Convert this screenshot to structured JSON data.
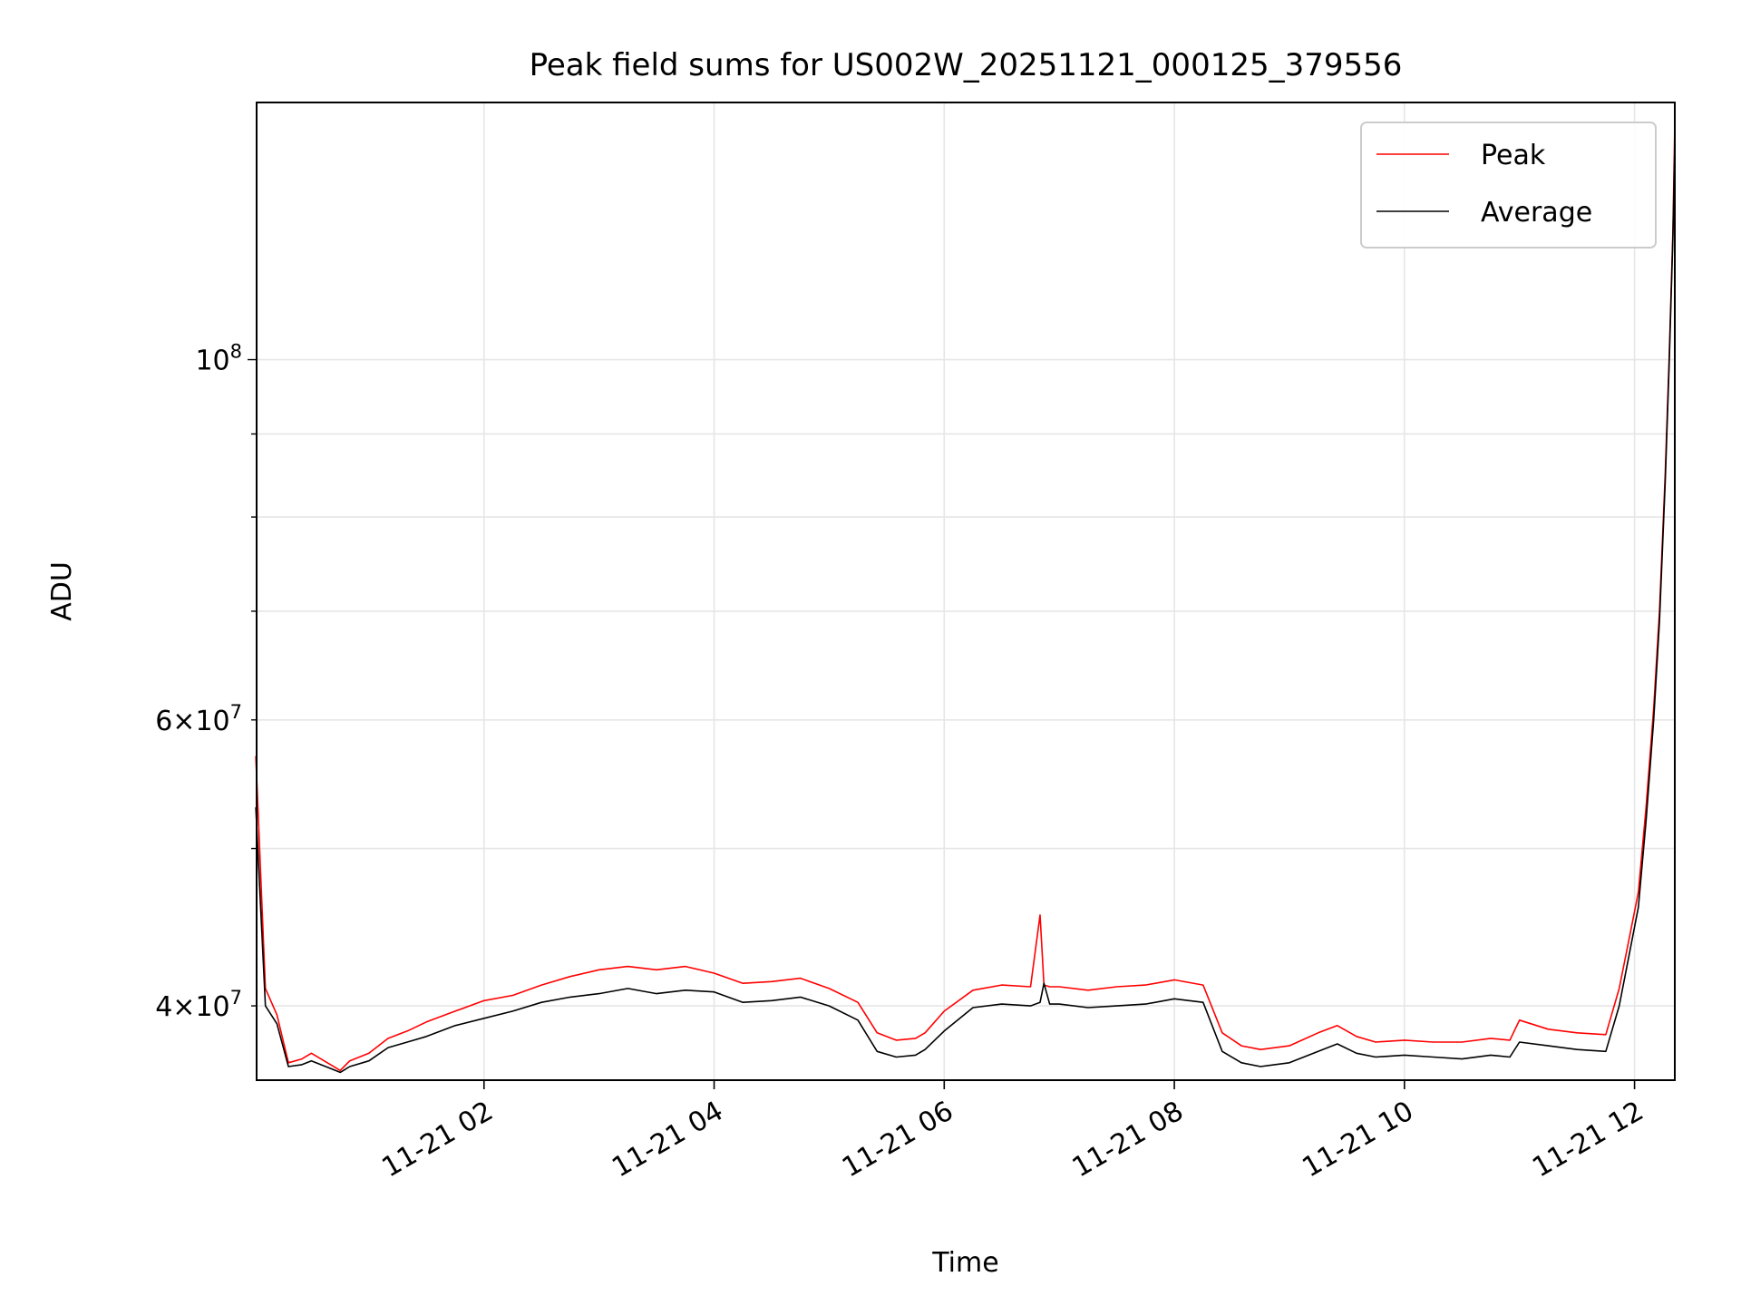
{
  "chart_data": {
    "type": "line",
    "title": "Peak field sums for US002W_20251121_000125_379556",
    "xlabel": "Time",
    "ylabel": "ADU",
    "y_scale": "log",
    "x_range": [
      "2025-11-21T00:01:25",
      "2025-11-21T12:21:00"
    ],
    "ylim": [
      36000000,
      144000000
    ],
    "grid": true,
    "legend_position": "top-right",
    "x_ticks": [
      {
        "value": "2025-11-21T02:00",
        "label": "11-21 02"
      },
      {
        "value": "2025-11-21T04:00",
        "label": "11-21 04"
      },
      {
        "value": "2025-11-21T06:00",
        "label": "11-21 06"
      },
      {
        "value": "2025-11-21T08:00",
        "label": "11-21 08"
      },
      {
        "value": "2025-11-21T10:00",
        "label": "11-21 10"
      },
      {
        "value": "2025-11-21T12:00",
        "label": "11-21 12"
      }
    ],
    "y_major_ticks": [
      {
        "value": 100000000,
        "mantissa": "",
        "exp": "8"
      }
    ],
    "y_minor_ticks": [
      {
        "value": 40000000,
        "mantissa": "4",
        "exp": "7",
        "label": true
      },
      {
        "value": 50000000,
        "label": false
      },
      {
        "value": 60000000,
        "mantissa": "6",
        "exp": "7",
        "label": true
      },
      {
        "value": 70000000,
        "label": false
      },
      {
        "value": 80000000,
        "label": false
      },
      {
        "value": 90000000,
        "label": false
      }
    ],
    "series": [
      {
        "name": "Peak",
        "color": "#ff0000",
        "x": [
          "2025-11-21T00:01",
          "2025-11-21T00:06",
          "2025-11-21T00:12",
          "2025-11-21T00:18",
          "2025-11-21T00:25",
          "2025-11-21T00:30",
          "2025-11-21T00:40",
          "2025-11-21T00:45",
          "2025-11-21T00:50",
          "2025-11-21T01:00",
          "2025-11-21T01:10",
          "2025-11-21T01:20",
          "2025-11-21T01:30",
          "2025-11-21T01:45",
          "2025-11-21T02:00",
          "2025-11-21T02:15",
          "2025-11-21T02:30",
          "2025-11-21T02:45",
          "2025-11-21T03:00",
          "2025-11-21T03:15",
          "2025-11-21T03:30",
          "2025-11-21T03:45",
          "2025-11-21T04:00",
          "2025-11-21T04:15",
          "2025-11-21T04:30",
          "2025-11-21T04:45",
          "2025-11-21T05:00",
          "2025-11-21T05:15",
          "2025-11-21T05:25",
          "2025-11-21T05:35",
          "2025-11-21T05:45",
          "2025-11-21T05:50",
          "2025-11-21T06:00",
          "2025-11-21T06:15",
          "2025-11-21T06:30",
          "2025-11-21T06:45",
          "2025-11-21T06:50",
          "2025-11-21T06:52",
          "2025-11-21T06:55",
          "2025-11-21T07:00",
          "2025-11-21T07:15",
          "2025-11-21T07:30",
          "2025-11-21T07:45",
          "2025-11-21T08:00",
          "2025-11-21T08:15",
          "2025-11-21T08:25",
          "2025-11-21T08:35",
          "2025-11-21T08:45",
          "2025-11-21T09:00",
          "2025-11-21T09:15",
          "2025-11-21T09:25",
          "2025-11-21T09:35",
          "2025-11-21T09:45",
          "2025-11-21T10:00",
          "2025-11-21T10:15",
          "2025-11-21T10:30",
          "2025-11-21T10:45",
          "2025-11-21T10:55",
          "2025-11-21T11:00",
          "2025-11-21T11:15",
          "2025-11-21T11:30",
          "2025-11-21T11:45",
          "2025-11-21T11:52",
          "2025-11-21T11:58",
          "2025-11-21T12:02",
          "2025-11-21T12:06",
          "2025-11-21T12:10",
          "2025-11-21T12:13",
          "2025-11-21T12:16",
          "2025-11-21T12:18",
          "2025-11-21T12:20",
          "2025-11-21T12:21"
        ],
        "y": [
          57000000,
          41000000,
          39500000,
          36900000,
          37100000,
          37400000,
          36800000,
          36500000,
          37000000,
          37400000,
          38200000,
          38600000,
          39100000,
          39700000,
          40300000,
          40600000,
          41200000,
          41700000,
          42100000,
          42300000,
          42100000,
          42300000,
          41900000,
          41300000,
          41400000,
          41600000,
          41000000,
          40200000,
          38500000,
          38100000,
          38200000,
          38500000,
          39700000,
          40900000,
          41200000,
          41100000,
          45500000,
          41200000,
          41100000,
          41100000,
          40900000,
          41100000,
          41200000,
          41500000,
          41200000,
          38500000,
          37800000,
          37600000,
          37800000,
          38500000,
          38900000,
          38300000,
          38000000,
          38100000,
          38000000,
          38000000,
          38200000,
          38100000,
          39200000,
          38700000,
          38500000,
          38400000,
          41000000,
          44500000,
          47000000,
          53000000,
          61000000,
          70000000,
          85000000,
          100000000,
          120000000,
          140000000
        ]
      },
      {
        "name": "Average",
        "color": "#000000",
        "x": [
          "2025-11-21T00:01",
          "2025-11-21T00:06",
          "2025-11-21T00:12",
          "2025-11-21T00:18",
          "2025-11-21T00:25",
          "2025-11-21T00:30",
          "2025-11-21T00:40",
          "2025-11-21T00:45",
          "2025-11-21T00:50",
          "2025-11-21T01:00",
          "2025-11-21T01:10",
          "2025-11-21T01:20",
          "2025-11-21T01:30",
          "2025-11-21T01:45",
          "2025-11-21T02:00",
          "2025-11-21T02:15",
          "2025-11-21T02:30",
          "2025-11-21T02:45",
          "2025-11-21T03:00",
          "2025-11-21T03:15",
          "2025-11-21T03:30",
          "2025-11-21T03:45",
          "2025-11-21T04:00",
          "2025-11-21T04:15",
          "2025-11-21T04:30",
          "2025-11-21T04:45",
          "2025-11-21T05:00",
          "2025-11-21T05:15",
          "2025-11-21T05:25",
          "2025-11-21T05:35",
          "2025-11-21T05:45",
          "2025-11-21T05:50",
          "2025-11-21T06:00",
          "2025-11-21T06:15",
          "2025-11-21T06:30",
          "2025-11-21T06:45",
          "2025-11-21T06:50",
          "2025-11-21T06:52",
          "2025-11-21T06:55",
          "2025-11-21T07:00",
          "2025-11-21T07:15",
          "2025-11-21T07:30",
          "2025-11-21T07:45",
          "2025-11-21T08:00",
          "2025-11-21T08:15",
          "2025-11-21T08:25",
          "2025-11-21T08:35",
          "2025-11-21T08:45",
          "2025-11-21T09:00",
          "2025-11-21T09:15",
          "2025-11-21T09:25",
          "2025-11-21T09:35",
          "2025-11-21T09:45",
          "2025-11-21T10:00",
          "2025-11-21T10:15",
          "2025-11-21T10:30",
          "2025-11-21T10:45",
          "2025-11-21T10:55",
          "2025-11-21T11:00",
          "2025-11-21T11:15",
          "2025-11-21T11:30",
          "2025-11-21T11:45",
          "2025-11-21T11:52",
          "2025-11-21T11:58",
          "2025-11-21T12:02",
          "2025-11-21T12:06",
          "2025-11-21T12:10",
          "2025-11-21T12:13",
          "2025-11-21T12:16",
          "2025-11-21T12:18",
          "2025-11-21T12:20",
          "2025-11-21T12:21"
        ],
        "y": [
          53000000,
          40000000,
          39000000,
          36700000,
          36800000,
          37000000,
          36600000,
          36400000,
          36700000,
          37000000,
          37700000,
          38000000,
          38300000,
          38900000,
          39300000,
          39700000,
          40200000,
          40500000,
          40700000,
          41000000,
          40700000,
          40900000,
          40800000,
          40200000,
          40300000,
          40500000,
          40000000,
          39200000,
          37500000,
          37200000,
          37300000,
          37600000,
          38600000,
          39900000,
          40100000,
          40000000,
          40200000,
          41300000,
          40100000,
          40100000,
          39900000,
          40000000,
          40100000,
          40400000,
          40200000,
          37500000,
          36900000,
          36700000,
          36900000,
          37500000,
          37900000,
          37400000,
          37200000,
          37300000,
          37200000,
          37100000,
          37300000,
          37200000,
          38000000,
          37800000,
          37600000,
          37500000,
          40000000,
          43500000,
          46000000,
          52000000,
          60000000,
          69000000,
          84000000,
          99000000,
          119000000,
          136000000
        ]
      }
    ]
  }
}
